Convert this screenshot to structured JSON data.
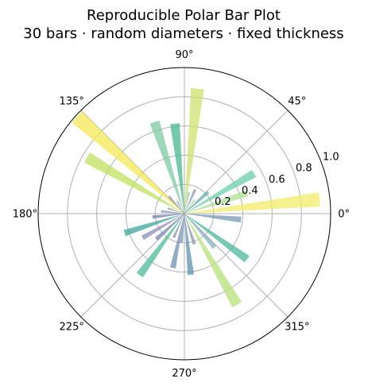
{
  "chart_data": {
    "type": "bar",
    "projection": "polar",
    "title_lines": [
      "Reproducible Polar Bar Plot",
      "30 bars · random diameters · fixed thickness"
    ],
    "angle_unit": "degrees",
    "theta_ticks": [
      {
        "deg": 0,
        "label": "0°"
      },
      {
        "deg": 45,
        "label": "45°"
      },
      {
        "deg": 90,
        "label": "90°"
      },
      {
        "deg": 135,
        "label": "135°"
      },
      {
        "deg": 180,
        "label": "180°"
      },
      {
        "deg": 225,
        "label": "225°"
      },
      {
        "deg": 270,
        "label": "270°"
      },
      {
        "deg": 315,
        "label": "315°"
      }
    ],
    "r_ticks": [
      {
        "value": 0.2,
        "label": "0.2"
      },
      {
        "value": 0.4,
        "label": "0.4"
      },
      {
        "value": 0.6,
        "label": "0.6"
      },
      {
        "value": 0.8,
        "label": "0.8"
      },
      {
        "value": 1.0,
        "label": "1.0"
      }
    ],
    "rlim": [
      0,
      1.0
    ],
    "grid": true,
    "bar_width_deg": 6,
    "bars": [
      {
        "theta": 6,
        "r": 0.93,
        "color": "#f2ec6a"
      },
      {
        "theta": 18,
        "r": 0.45,
        "color": "#addf94"
      },
      {
        "theta": 30,
        "r": 0.55,
        "color": "#6bcda9"
      },
      {
        "theta": 42,
        "r": 0.22,
        "color": "#5bb5a8"
      },
      {
        "theta": 54,
        "r": 0.12,
        "color": "#a7d88c"
      },
      {
        "theta": 66,
        "r": 0.18,
        "color": "#8c8fb6"
      },
      {
        "theta": 78,
        "r": 0.15,
        "color": "#97cdc6"
      },
      {
        "theta": 84,
        "r": 0.86,
        "color": "#cde26e"
      },
      {
        "theta": 96,
        "r": 0.62,
        "color": "#46b88e"
      },
      {
        "theta": 108,
        "r": 0.66,
        "color": "#7ccba0"
      },
      {
        "theta": 120,
        "r": 0.1,
        "color": "#8c8fb6"
      },
      {
        "theta": 132,
        "r": 0.16,
        "color": "#8c8fb6"
      },
      {
        "theta": 138,
        "r": 0.99,
        "color": "#f5e854"
      },
      {
        "theta": 150,
        "r": 0.77,
        "color": "#bde25e"
      },
      {
        "theta": 162,
        "r": 0.12,
        "color": "#8c8fb6"
      },
      {
        "theta": 174,
        "r": 0.16,
        "color": "#8c8fb6"
      },
      {
        "theta": 186,
        "r": 0.22,
        "color": "#707fb2"
      },
      {
        "theta": 198,
        "r": 0.43,
        "color": "#3ea6a0"
      },
      {
        "theta": 210,
        "r": 0.33,
        "color": "#8c8fb6"
      },
      {
        "theta": 222,
        "r": 0.26,
        "color": "#7a88b6"
      },
      {
        "theta": 234,
        "r": 0.52,
        "color": "#4bbb99"
      },
      {
        "theta": 246,
        "r": 0.18,
        "color": "#8c8fb6"
      },
      {
        "theta": 258,
        "r": 0.38,
        "color": "#6f8fb0"
      },
      {
        "theta": 264,
        "r": 0.2,
        "color": "#7a93b6"
      },
      {
        "theta": 276,
        "r": 0.42,
        "color": "#5c93b0"
      },
      {
        "theta": 288,
        "r": 0.22,
        "color": "#8c8fb6"
      },
      {
        "theta": 300,
        "r": 0.72,
        "color": "#b6e07a"
      },
      {
        "theta": 312,
        "r": 0.31,
        "color": "#7fb2c2"
      },
      {
        "theta": 324,
        "r": 0.53,
        "color": "#48b89a"
      },
      {
        "theta": 354,
        "r": 0.39,
        "color": "#7997b2"
      }
    ]
  }
}
